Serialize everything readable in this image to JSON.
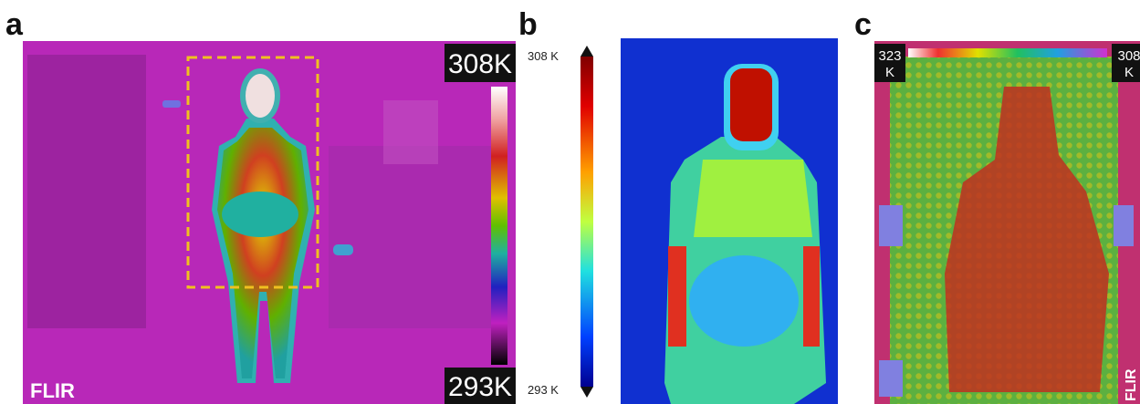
{
  "panels": [
    {
      "label": "a",
      "scale_max": "308K",
      "scale_min": "293K",
      "logo": "FLIR"
    },
    {
      "label": "b",
      "scale_max": "308 K",
      "scale_min": "293 K"
    },
    {
      "label": "c",
      "scale_left": [
        "323",
        "K"
      ],
      "scale_right": [
        "308",
        "K"
      ],
      "logo": "FLIR"
    }
  ]
}
